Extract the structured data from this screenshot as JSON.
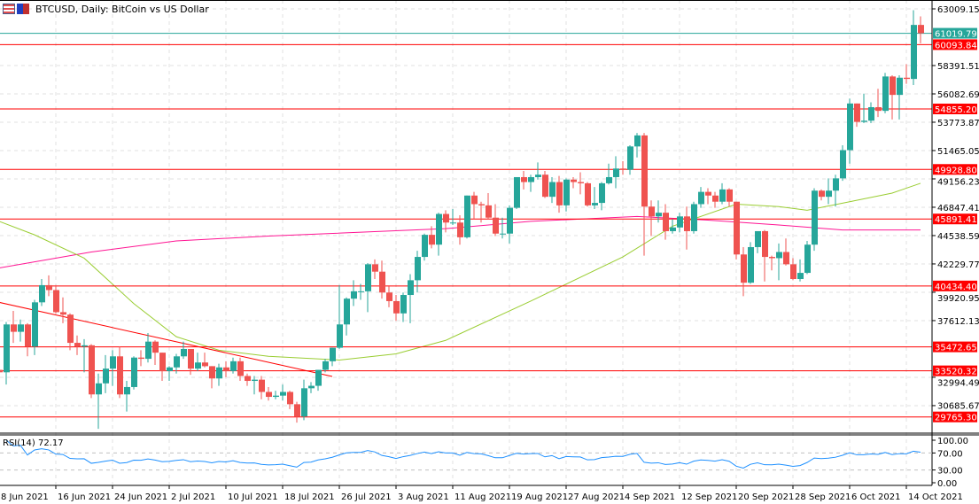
{
  "header": {
    "title": "BTCUSD, Daily:  BitCoin vs US Dollar",
    "icons": [
      "chart-window-icon",
      "templates-icon"
    ]
  },
  "colors": {
    "bull": "#26a69a",
    "bear": "#ef5350",
    "level_line": "#ff0000",
    "bid_line": "#26a69a",
    "ma_fast": "#9acd32",
    "ma_slow": "#ff1493",
    "rsi": "#1e90ff",
    "grid": "#e0e0e0"
  },
  "chart_data": {
    "type": "candlestick",
    "symbol": "BTCUSD",
    "timeframe": "Daily",
    "ylim": [
      28400,
      64100
    ],
    "price_ticks": [
      "63009.150",
      "58391.510",
      "56082.690",
      "53773.870",
      "51465.050",
      "49156.230",
      "46847.410",
      "44538.590",
      "42229.770",
      "39920.950",
      "37612.130",
      "32994.490",
      "30685.670"
    ],
    "date_ticks": [
      "8 Jun 2021",
      "16 Jun 2021",
      "24 Jun 2021",
      "2 Jul 2021",
      "10 Jul 2021",
      "18 Jul 2021",
      "26 Jul 2021",
      "3 Aug 2021",
      "11 Aug 2021",
      "19 Aug 2021",
      "27 Aug 2021",
      "4 Sep 2021",
      "12 Sep 2021",
      "20 Sep 2021",
      "28 Sep 2021",
      "6 Oct 2021",
      "14 Oct 2021"
    ],
    "bid": {
      "value": 61019.799,
      "label": "61019.799"
    },
    "levels": [
      {
        "value": 60093.845,
        "label": "60093.845"
      },
      {
        "value": 54855.207,
        "label": "54855.207"
      },
      {
        "value": 49928.803,
        "label": "49928.803"
      },
      {
        "value": 45891.413,
        "label": "45891.413"
      },
      {
        "value": 40434.404,
        "label": "40434.404"
      },
      {
        "value": 35472.658,
        "label": "35472.658"
      },
      {
        "value": 33520.324,
        "label": "33520.324"
      },
      {
        "value": 29765.308,
        "label": "29765.308"
      }
    ],
    "trendline": [
      [
        "8 Jun",
        39100
      ],
      [
        "25 Jul",
        33060
      ]
    ],
    "ma_fast": [
      [
        "8 Jun",
        45700
      ],
      [
        "13 Jun",
        44600
      ],
      [
        "20 Jun",
        42700
      ],
      [
        "27 Jun",
        39000
      ],
      [
        "3 Jul",
        36300
      ],
      [
        "9 Jul",
        35200
      ],
      [
        "16 Jul",
        34700
      ],
      [
        "26 Jul",
        34400
      ],
      [
        "3 Aug",
        34900
      ],
      [
        "10 Aug",
        36000
      ],
      [
        "22 Aug",
        39200
      ],
      [
        "4 Sep",
        42800
      ],
      [
        "11 Sep",
        45300
      ],
      [
        "20 Sep",
        47100
      ],
      [
        "26 Sep",
        46900
      ],
      [
        "30 Sep",
        46600
      ],
      [
        "6 Oct",
        47300
      ],
      [
        "12 Oct",
        48000
      ],
      [
        "16 Oct",
        48800
      ]
    ],
    "ma_slow": [
      [
        "8 Jun",
        41900
      ],
      [
        "21 Jun",
        43200
      ],
      [
        "3 Jul",
        44100
      ],
      [
        "16 Jul",
        44500
      ],
      [
        "10 Aug",
        45100
      ],
      [
        "22 Aug",
        45700
      ],
      [
        "6 Sep",
        46100
      ],
      [
        "16 Sep",
        45800
      ],
      [
        "26 Sep",
        45400
      ],
      [
        "5 Oct",
        45000
      ],
      [
        "16 Oct",
        45000
      ]
    ],
    "rsi": {
      "label": "RSI(14) 72.17",
      "period": 14,
      "levels": [
        70,
        30
      ],
      "ticks": [
        "100.00",
        "70.00",
        "30.00",
        "0.00"
      ]
    },
    "candles_columns": [
      "date",
      "open",
      "high",
      "low",
      "close"
    ],
    "candles": [
      [
        "8 Jun",
        33600,
        34000,
        31000,
        33400
      ],
      [
        "9 Jun",
        33400,
        37500,
        32400,
        37300
      ],
      [
        "10 Jun",
        37300,
        38400,
        35800,
        36700
      ],
      [
        "11 Jun",
        36700,
        37700,
        35900,
        37300
      ],
      [
        "12 Jun",
        37300,
        37400,
        34700,
        35500
      ],
      [
        "13 Jun",
        35500,
        39300,
        34800,
        39100
      ],
      [
        "14 Jun",
        39100,
        41000,
        38800,
        40500
      ],
      [
        "15 Jun",
        40500,
        41300,
        39600,
        40100
      ],
      [
        "16 Jun",
        40100,
        40500,
        38200,
        38300
      ],
      [
        "17 Jun",
        38300,
        39500,
        37400,
        38100
      ],
      [
        "18 Jun",
        38100,
        38200,
        35200,
        35800
      ],
      [
        "19 Jun",
        35800,
        36400,
        34800,
        35500
      ],
      [
        "20 Jun",
        35500,
        36100,
        33400,
        35600
      ],
      [
        "21 Jun",
        35600,
        35700,
        31300,
        31600
      ],
      [
        "22 Jun",
        31600,
        33300,
        28800,
        32500
      ],
      [
        "23 Jun",
        32500,
        34800,
        31700,
        33700
      ],
      [
        "24 Jun",
        33700,
        35200,
        32300,
        34700
      ],
      [
        "25 Jun",
        34700,
        35500,
        31300,
        31600
      ],
      [
        "26 Jun",
        31600,
        32700,
        30200,
        32200
      ],
      [
        "27 Jun",
        32200,
        34700,
        32000,
        34600
      ],
      [
        "28 Jun",
        34600,
        35200,
        33900,
        34500
      ],
      [
        "29 Jun",
        34500,
        36600,
        34200,
        35900
      ],
      [
        "30 Jun",
        35900,
        36000,
        34000,
        35000
      ],
      [
        "1 Jul",
        35000,
        35000,
        32700,
        33500
      ],
      [
        "2 Jul",
        33500,
        33900,
        32700,
        33800
      ],
      [
        "3 Jul",
        33800,
        34900,
        33300,
        34700
      ],
      [
        "4 Jul",
        34700,
        35900,
        34500,
        35300
      ],
      [
        "5 Jul",
        35300,
        35300,
        33200,
        33700
      ],
      [
        "6 Jul",
        33700,
        35000,
        33500,
        34200
      ],
      [
        "7 Jul",
        34200,
        35000,
        33800,
        33900
      ],
      [
        "8 Jul",
        33900,
        33900,
        32100,
        32900
      ],
      [
        "9 Jul",
        32900,
        34100,
        32300,
        33800
      ],
      [
        "10 Jul",
        33800,
        34300,
        33000,
        33500
      ],
      [
        "11 Jul",
        33500,
        34600,
        33300,
        34300
      ],
      [
        "12 Jul",
        34300,
        34600,
        32700,
        33100
      ],
      [
        "13 Jul",
        33100,
        33300,
        32300,
        32700
      ],
      [
        "14 Jul",
        32700,
        33100,
        31600,
        32800
      ],
      [
        "15 Jul",
        32800,
        33100,
        31200,
        31800
      ],
      [
        "16 Jul",
        31800,
        32200,
        31100,
        31400
      ],
      [
        "17 Jul",
        31400,
        31900,
        31200,
        31500
      ],
      [
        "18 Jul",
        31500,
        32400,
        31100,
        31800
      ],
      [
        "19 Jul",
        31800,
        31900,
        30400,
        30800
      ],
      [
        "20 Jul",
        30800,
        31000,
        29300,
        29800
      ],
      [
        "21 Jul",
        29800,
        32800,
        29500,
        32100
      ],
      [
        "22 Jul",
        32100,
        32600,
        31700,
        32300
      ],
      [
        "23 Jul",
        32300,
        33600,
        31900,
        33600
      ],
      [
        "24 Jul",
        33600,
        34500,
        33400,
        34300
      ],
      [
        "25 Jul",
        34300,
        35400,
        33900,
        35400
      ],
      [
        "26 Jul",
        35400,
        40500,
        35300,
        37300
      ],
      [
        "27 Jul",
        37300,
        39500,
        36400,
        39400
      ],
      [
        "28 Jul",
        39400,
        40900,
        38800,
        40000
      ],
      [
        "29 Jul",
        40000,
        40600,
        39300,
        40000
      ],
      [
        "30 Jul",
        40000,
        42300,
        38300,
        42200
      ],
      [
        "31 Jul",
        42200,
        42600,
        41000,
        41600
      ],
      [
        "1 Aug",
        41600,
        42500,
        39400,
        39900
      ],
      [
        "2 Aug",
        39900,
        40400,
        38700,
        39200
      ],
      [
        "3 Aug",
        39200,
        39700,
        37600,
        38200
      ],
      [
        "4 Aug",
        38200,
        39900,
        37500,
        39700
      ],
      [
        "5 Aug",
        39700,
        41400,
        37400,
        40900
      ],
      [
        "6 Aug",
        40900,
        43300,
        39900,
        42800
      ],
      [
        "7 Aug",
        42800,
        44700,
        42500,
        44600
      ],
      [
        "8 Aug",
        44600,
        45300,
        43500,
        43800
      ],
      [
        "9 Aug",
        43800,
        46400,
        42900,
        46300
      ],
      [
        "10 Aug",
        46300,
        46600,
        44800,
        45600
      ],
      [
        "11 Aug",
        45600,
        46700,
        45400,
        45600
      ],
      [
        "12 Aug",
        45600,
        46200,
        43800,
        44400
      ],
      [
        "13 Aug",
        44400,
        47800,
        44300,
        47800
      ],
      [
        "14 Aug",
        47800,
        48100,
        45900,
        47100
      ],
      [
        "15 Aug",
        47100,
        47300,
        45600,
        47000
      ],
      [
        "16 Aug",
        47000,
        48000,
        45900,
        46000
      ],
      [
        "17 Aug",
        46000,
        47100,
        44500,
        44700
      ],
      [
        "18 Aug",
        44700,
        46000,
        44300,
        44700
      ],
      [
        "19 Aug",
        44700,
        47000,
        43900,
        46800
      ],
      [
        "20 Aug",
        46800,
        49300,
        46700,
        49300
      ],
      [
        "21 Aug",
        49300,
        49800,
        48300,
        48900
      ],
      [
        "22 Aug",
        48900,
        49500,
        48100,
        49300
      ],
      [
        "23 Aug",
        49300,
        50500,
        49100,
        49500
      ],
      [
        "24 Aug",
        49500,
        49800,
        47600,
        47700
      ],
      [
        "25 Aug",
        47700,
        49300,
        47200,
        48900
      ],
      [
        "26 Aug",
        48900,
        49400,
        46400,
        47000
      ],
      [
        "27 Aug",
        47000,
        49200,
        46500,
        49100
      ],
      [
        "28 Aug",
        49100,
        49300,
        48400,
        48900
      ],
      [
        "29 Aug",
        48900,
        49700,
        47900,
        48800
      ],
      [
        "30 Aug",
        48800,
        48900,
        46900,
        47000
      ],
      [
        "31 Aug",
        47000,
        48500,
        46700,
        47200
      ],
      [
        "1 Sep",
        47200,
        48900,
        46600,
        48800
      ],
      [
        "2 Sep",
        48800,
        50400,
        48700,
        49300
      ],
      [
        "3 Sep",
        49300,
        51000,
        48400,
        50000
      ],
      [
        "4 Sep",
        50000,
        50600,
        49500,
        49900
      ],
      [
        "5 Sep",
        49900,
        51900,
        49500,
        51800
      ],
      [
        "6 Sep",
        51800,
        52900,
        50900,
        52700
      ],
      [
        "7 Sep",
        52700,
        52900,
        42900,
        46900
      ],
      [
        "8 Sep",
        46900,
        47400,
        44500,
        46100
      ],
      [
        "9 Sep",
        46100,
        47400,
        45600,
        46400
      ],
      [
        "10 Sep",
        46400,
        47100,
        44200,
        44900
      ],
      [
        "11 Sep",
        44900,
        45900,
        44700,
        45200
      ],
      [
        "12 Sep",
        45200,
        46400,
        44800,
        46100
      ],
      [
        "13 Sep",
        46100,
        46900,
        43400,
        44900
      ],
      [
        "14 Sep",
        44900,
        47300,
        44700,
        47100
      ],
      [
        "15 Sep",
        47100,
        48500,
        46800,
        48100
      ],
      [
        "16 Sep",
        48100,
        48400,
        47100,
        47800
      ],
      [
        "17 Sep",
        47800,
        48100,
        46800,
        47300
      ],
      [
        "18 Sep",
        47300,
        48800,
        47100,
        48300
      ],
      [
        "19 Sep",
        48300,
        48400,
        46900,
        47300
      ],
      [
        "20 Sep",
        47300,
        47300,
        42600,
        43000
      ],
      [
        "21 Sep",
        43000,
        43600,
        39600,
        40700
      ],
      [
        "22 Sep",
        40700,
        44000,
        40600,
        43600
      ],
      [
        "23 Sep",
        43600,
        44900,
        43100,
        44900
      ],
      [
        "24 Sep",
        44900,
        45000,
        40800,
        42800
      ],
      [
        "25 Sep",
        42800,
        42900,
        41700,
        42700
      ],
      [
        "26 Sep",
        42700,
        43900,
        40900,
        43200
      ],
      [
        "27 Sep",
        43200,
        44300,
        42100,
        42200
      ],
      [
        "28 Sep",
        42200,
        42700,
        40900,
        41000
      ],
      [
        "29 Sep",
        41000,
        42600,
        40800,
        41500
      ],
      [
        "30 Sep",
        41500,
        44100,
        41400,
        43800
      ],
      [
        "1 Oct",
        43800,
        48400,
        43300,
        48200
      ],
      [
        "2 Oct",
        48200,
        48300,
        47400,
        47700
      ],
      [
        "3 Oct",
        47700,
        49200,
        47100,
        48200
      ],
      [
        "4 Oct",
        48200,
        49500,
        46900,
        49200
      ],
      [
        "5 Oct",
        49200,
        51900,
        49000,
        51500
      ],
      [
        "6 Oct",
        51500,
        55700,
        50400,
        55300
      ],
      [
        "7 Oct",
        55300,
        55300,
        53400,
        53800
      ],
      [
        "8 Oct",
        53800,
        56100,
        53700,
        53900
      ],
      [
        "9 Oct",
        53900,
        55400,
        53700,
        55000
      ],
      [
        "10 Oct",
        55000,
        56500,
        54200,
        54700
      ],
      [
        "11 Oct",
        54700,
        57800,
        54500,
        57500
      ],
      [
        "12 Oct",
        57500,
        57600,
        54000,
        56000
      ],
      [
        "13 Oct",
        56000,
        57600,
        54000,
        57400
      ],
      [
        "14 Oct",
        57400,
        58500,
        56900,
        57300
      ],
      [
        "15 Oct",
        57300,
        62900,
        56800,
        61700
      ],
      [
        "16 Oct",
        61700,
        62400,
        60200,
        61020
      ]
    ]
  }
}
